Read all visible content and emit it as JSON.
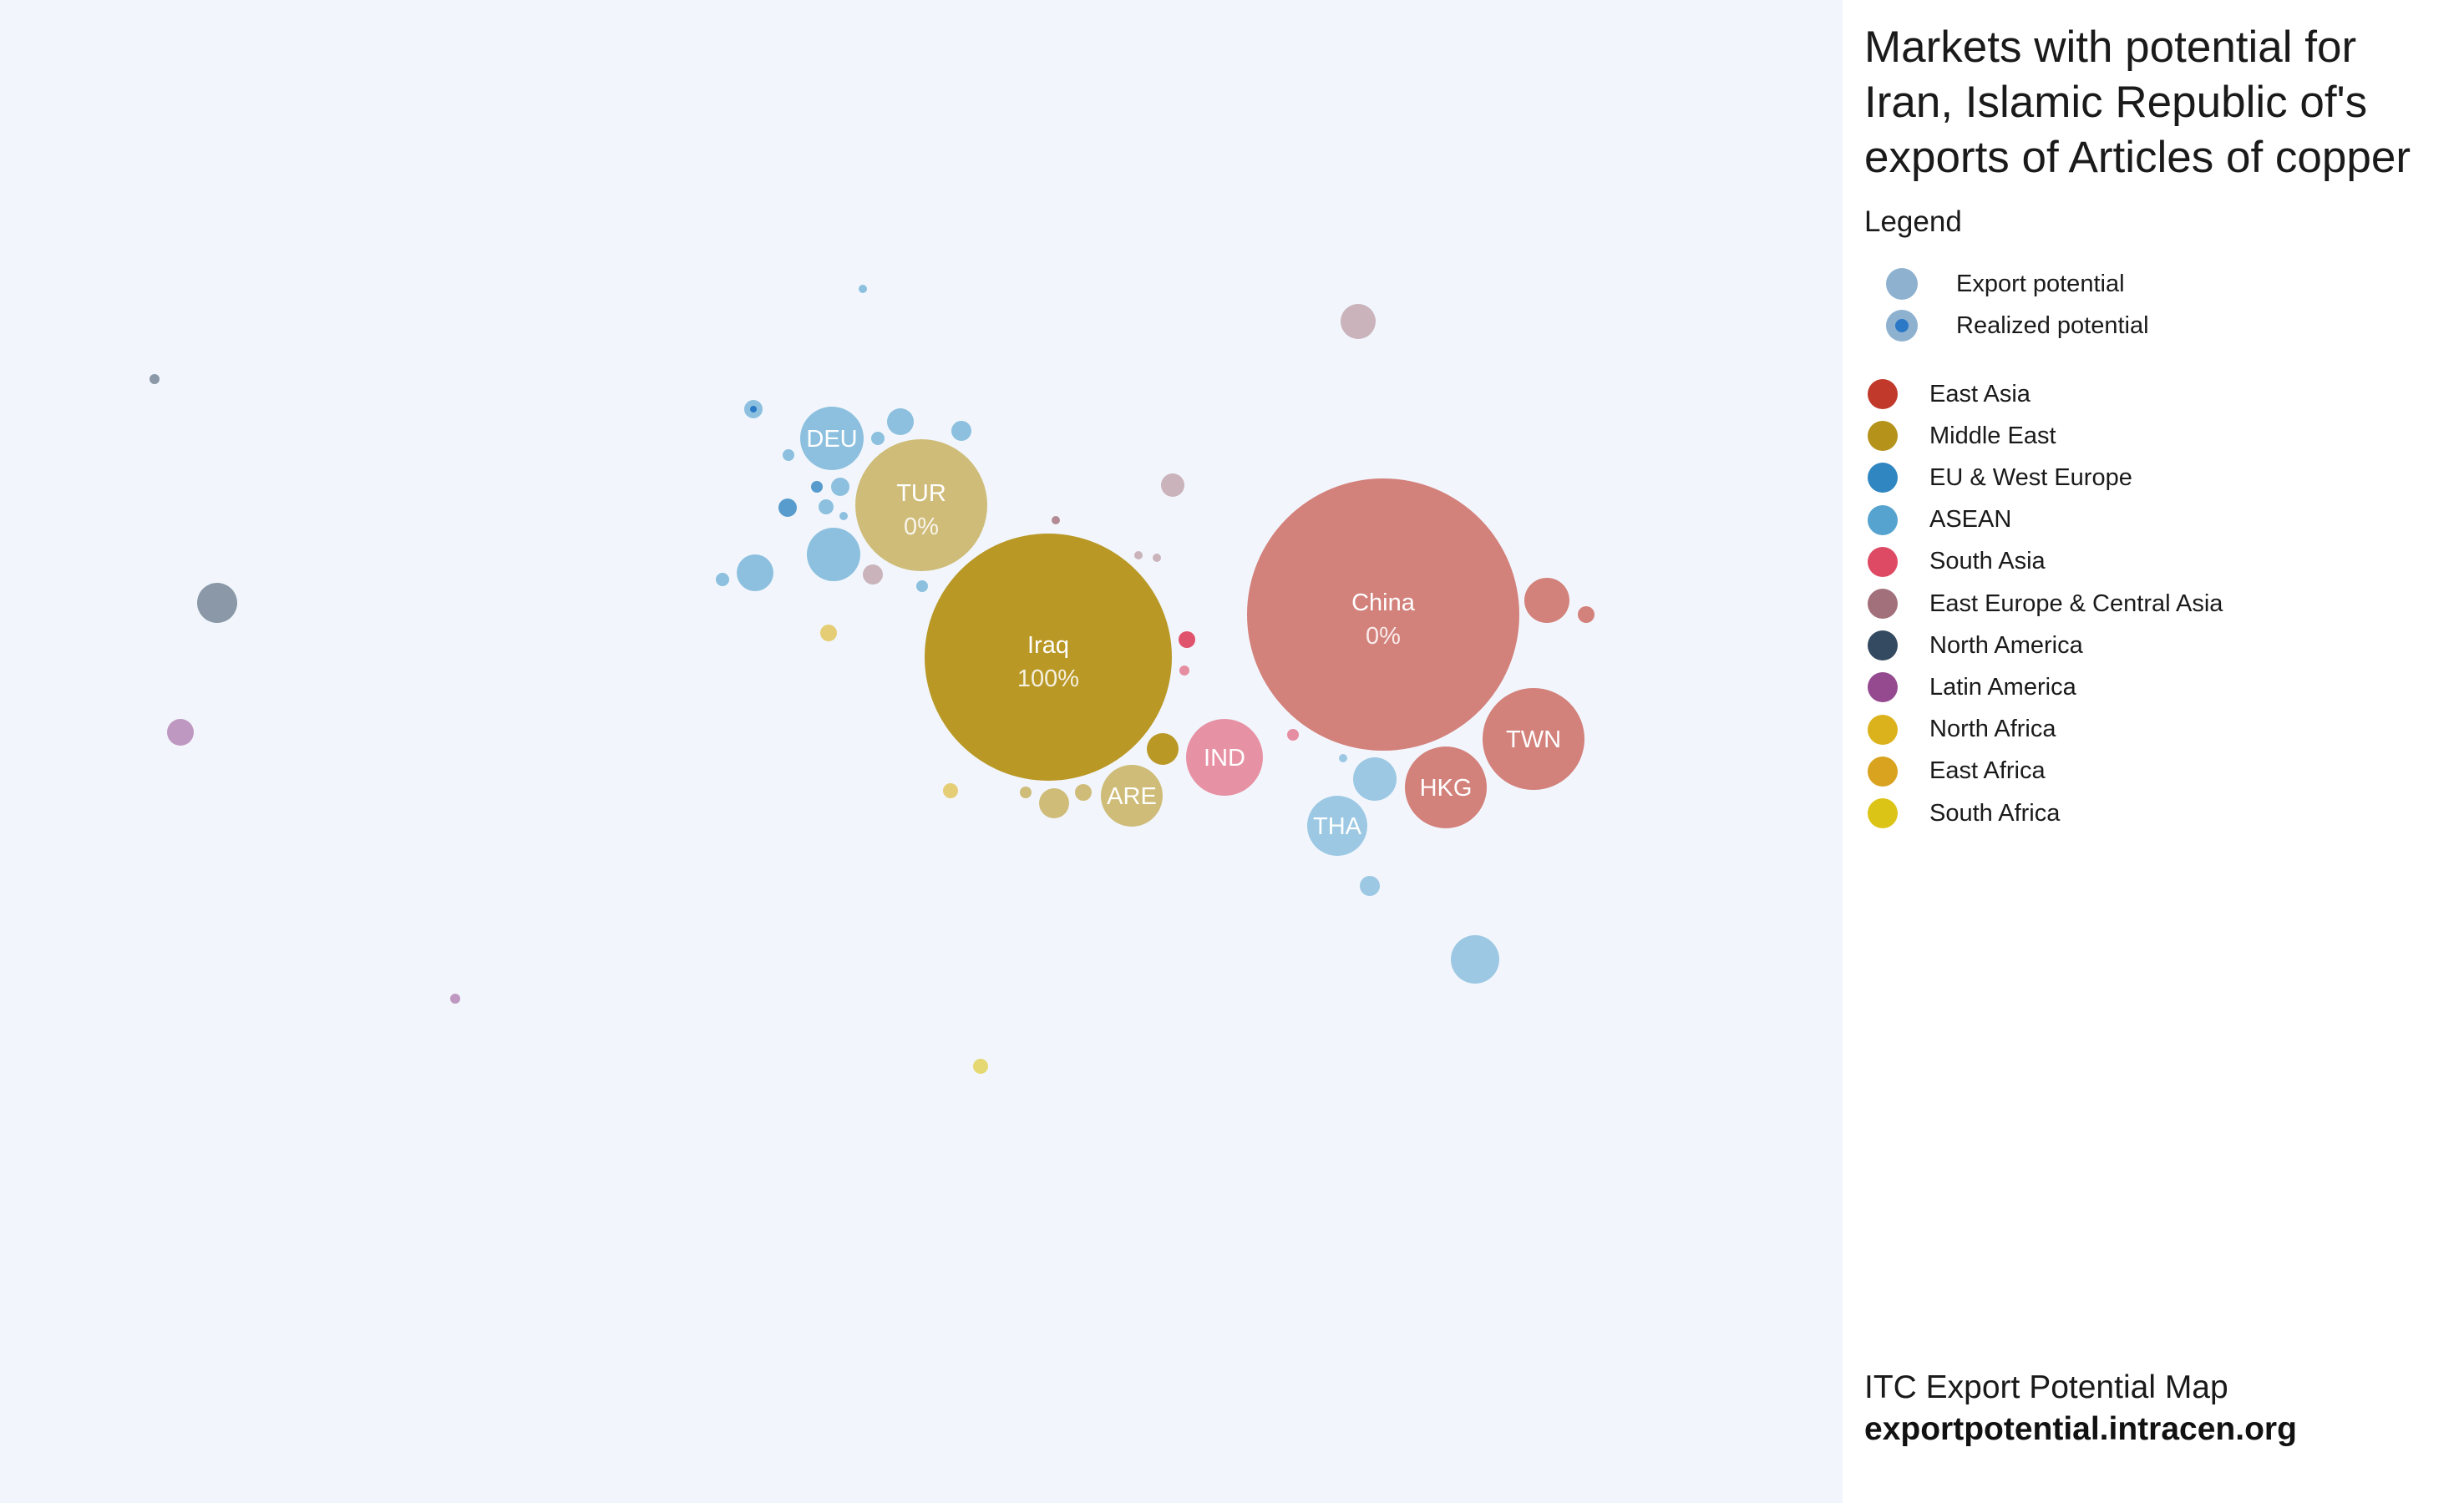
{
  "title": "Markets with potential for Iran, Islamic Republic of's exports of Articles of copper",
  "legend": {
    "heading": "Legend",
    "size_items": [
      {
        "label": "Export potential",
        "icon": "export-potential-circle"
      },
      {
        "label": "Realized potential",
        "icon": "realized-potential-circle"
      }
    ],
    "regions": [
      {
        "label": "East Asia",
        "color": "#c0392b"
      },
      {
        "label": "Middle East",
        "color": "#b5921a"
      },
      {
        "label": "EU & West Europe",
        "color": "#2f86c1"
      },
      {
        "label": "ASEAN",
        "color": "#56a3cf"
      },
      {
        "label": "South Asia",
        "color": "#de4a64"
      },
      {
        "label": "East Europe & Central Asia",
        "color": "#a2707a"
      },
      {
        "label": "North America",
        "color": "#344a60"
      },
      {
        "label": "Latin America",
        "color": "#954a8f"
      },
      {
        "label": "North Africa",
        "color": "#dcb21c"
      },
      {
        "label": "East Africa",
        "color": "#d9a21f"
      },
      {
        "label": "South Africa",
        "color": "#dcc416"
      }
    ]
  },
  "footer": {
    "line1": "ITC Export Potential Map",
    "line2": "exportpotential.intracen.org"
  },
  "chart_data": {
    "type": "bubble-map",
    "title": "Markets with potential for Iran, Islamic Republic of's exports of Articles of copper",
    "size_encodes": "Export potential",
    "inner_encodes": "Realized potential",
    "color_encodes": "Region",
    "labeled_markets": [
      {
        "label": "Iraq",
        "value": "100%",
        "region": "Middle East"
      },
      {
        "label": "China",
        "value": "0%",
        "region": "East Asia"
      },
      {
        "label": "TUR",
        "value": "0%",
        "region": "Middle East"
      },
      {
        "label": "DEU",
        "region": "EU & West Europe"
      },
      {
        "label": "TWN",
        "region": "East Asia"
      },
      {
        "label": "HKG",
        "region": "East Asia"
      },
      {
        "label": "IND",
        "region": "South Asia"
      },
      {
        "label": "ARE",
        "region": "Middle East"
      },
      {
        "label": "THA",
        "region": "ASEAN"
      }
    ]
  }
}
